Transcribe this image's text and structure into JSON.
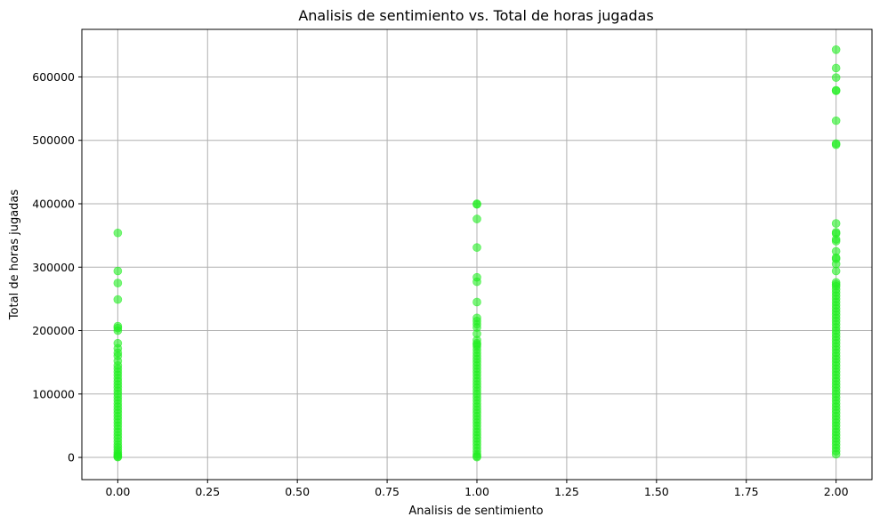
{
  "chart_data": {
    "type": "scatter",
    "title": "Analisis de sentimiento vs. Total de horas jugadas",
    "xlabel": "Analisis de sentimiento",
    "ylabel": "Total de horas jugadas",
    "xlim": [
      -0.1,
      2.1
    ],
    "ylim": [
      -35000,
      675000
    ],
    "x_ticks": [
      0.0,
      0.25,
      0.5,
      0.75,
      1.0,
      1.25,
      1.5,
      1.75,
      2.0
    ],
    "x_tick_labels": [
      "0.00",
      "0.25",
      "0.50",
      "0.75",
      "1.00",
      "1.25",
      "1.50",
      "1.75",
      "2.00"
    ],
    "y_ticks": [
      0,
      100000,
      200000,
      300000,
      400000,
      500000,
      600000
    ],
    "y_tick_labels": [
      "0",
      "100000",
      "200000",
      "300000",
      "400000",
      "500000",
      "600000"
    ],
    "grid": true,
    "marker_color": "#22ee22",
    "series": [
      {
        "x": [
          0,
          0,
          0,
          0,
          0,
          0,
          0,
          0,
          0,
          0,
          0,
          0,
          0,
          0,
          0,
          0,
          0,
          0,
          0,
          0,
          0,
          0,
          0,
          0,
          0,
          0,
          0,
          0,
          0,
          0,
          0,
          0,
          0,
          0,
          0,
          0,
          0,
          0,
          0,
          0,
          0,
          0,
          0,
          0,
          0
        ],
        "y": [
          354000,
          294000,
          275000,
          249000,
          207000,
          204000,
          200000,
          180000,
          172000,
          165000,
          160000,
          152000,
          145000,
          140000,
          135000,
          130000,
          125000,
          120000,
          115000,
          110000,
          105000,
          100000,
          95000,
          90000,
          85000,
          80000,
          75000,
          70000,
          65000,
          60000,
          55000,
          50000,
          45000,
          40000,
          35000,
          30000,
          25000,
          20000,
          16000,
          12000,
          8000,
          5000,
          3000,
          1500,
          500
        ]
      },
      {
        "x": [
          1,
          1,
          1,
          1,
          1,
          1,
          1,
          1,
          1,
          1,
          1,
          1,
          1,
          1,
          1,
          1,
          1,
          1,
          1,
          1,
          1,
          1,
          1,
          1,
          1,
          1,
          1,
          1,
          1,
          1,
          1,
          1,
          1,
          1,
          1,
          1,
          1,
          1,
          1,
          1,
          1,
          1,
          1,
          1,
          1,
          1,
          1,
          1,
          1,
          1,
          1,
          1
        ],
        "y": [
          400000,
          399000,
          376000,
          331000,
          284000,
          277000,
          245000,
          220000,
          215000,
          210000,
          205000,
          195000,
          185000,
          180000,
          178000,
          175000,
          170000,
          165000,
          160000,
          155000,
          150000,
          145000,
          140000,
          135000,
          130000,
          125000,
          120000,
          115000,
          110000,
          105000,
          100000,
          95000,
          90000,
          85000,
          80000,
          75000,
          70000,
          65000,
          60000,
          55000,
          50000,
          45000,
          40000,
          35000,
          30000,
          25000,
          20000,
          15000,
          10000,
          5000,
          2000,
          500
        ]
      },
      {
        "x": [
          2,
          2,
          2,
          2,
          2,
          2,
          2,
          2,
          2,
          2,
          2,
          2,
          2,
          2,
          2,
          2,
          2,
          2,
          2,
          2,
          2,
          2,
          2,
          2,
          2,
          2,
          2,
          2,
          2,
          2,
          2,
          2,
          2,
          2,
          2,
          2,
          2,
          2,
          2,
          2,
          2,
          2,
          2,
          2,
          2,
          2,
          2,
          2,
          2,
          2,
          2,
          2,
          2,
          2,
          2,
          2,
          2,
          2,
          2,
          2,
          2,
          2,
          2,
          2,
          2,
          2,
          2,
          2,
          2,
          2,
          2,
          2,
          2,
          2
        ],
        "y": [
          643000,
          614000,
          599000,
          579000,
          578000,
          531000,
          495000,
          493000,
          369000,
          355000,
          353000,
          344000,
          341000,
          325000,
          315000,
          313000,
          305000,
          294000,
          276000,
          273000,
          270000,
          265000,
          260000,
          255000,
          250000,
          245000,
          240000,
          235000,
          230000,
          225000,
          220000,
          215000,
          210000,
          205000,
          200000,
          195000,
          190000,
          185000,
          180000,
          175000,
          170000,
          165000,
          160000,
          155000,
          150000,
          145000,
          140000,
          135000,
          130000,
          125000,
          120000,
          115000,
          110000,
          105000,
          100000,
          95000,
          90000,
          85000,
          80000,
          75000,
          70000,
          65000,
          60000,
          55000,
          50000,
          45000,
          40000,
          35000,
          30000,
          25000,
          20000,
          15000,
          10000,
          5000
        ]
      }
    ]
  }
}
